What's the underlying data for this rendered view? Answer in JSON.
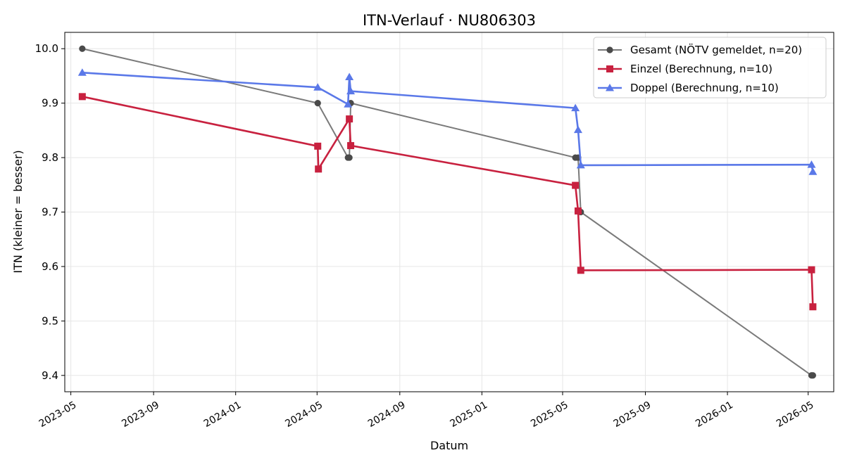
{
  "chart_data": {
    "type": "line",
    "title": "ITN-Verlauf · NU806303",
    "xlabel": "Datum",
    "ylabel": "ITN  (kleiner = besser)",
    "x_type": "date",
    "xlim": [
      "2023-04-22",
      "2026-06-08"
    ],
    "ylim": [
      9.37,
      10.03
    ],
    "x_ticks": [
      "2023-05-01",
      "2023-09-01",
      "2024-01-01",
      "2024-05-01",
      "2024-09-01",
      "2025-01-01",
      "2025-05-01",
      "2025-09-01",
      "2026-01-01",
      "2026-05-01"
    ],
    "x_tick_labels": [
      "2023-05",
      "2023-09",
      "2024-01",
      "2024-05",
      "2024-09",
      "2025-01",
      "2025-05",
      "2025-09",
      "2026-01",
      "2026-05"
    ],
    "y_ticks": [
      9.4,
      9.5,
      9.6,
      9.7,
      9.8,
      9.9,
      10.0
    ],
    "y_tick_labels": [
      "9.4",
      "9.5",
      "9.6",
      "9.7",
      "9.8",
      "9.9",
      "10.0"
    ],
    "grid": true,
    "legend_position": "top-right",
    "series": [
      {
        "name": "Gesamt (NÖTV gemeldet, n=20)",
        "color": "#7a7a7a",
        "marker": "circle",
        "marker_color": "#4a4a4a",
        "points": [
          {
            "x": "2023-05-18",
            "y": 10.0
          },
          {
            "x": "2024-05-02",
            "y": 9.9
          },
          {
            "x": "2024-06-16",
            "y": 9.8
          },
          {
            "x": "2024-06-18",
            "y": 9.8
          },
          {
            "x": "2024-06-20",
            "y": 9.9
          },
          {
            "x": "2025-05-20",
            "y": 9.8
          },
          {
            "x": "2025-05-24",
            "y": 9.8
          },
          {
            "x": "2025-05-28",
            "y": 9.7
          },
          {
            "x": "2026-05-06",
            "y": 9.4
          },
          {
            "x": "2026-05-08",
            "y": 9.4
          }
        ]
      },
      {
        "name": "Einzel (Berechnung, n=10)",
        "color": "#c8213f",
        "marker": "square",
        "points": [
          {
            "x": "2023-05-18",
            "y": 9.912
          },
          {
            "x": "2024-05-02",
            "y": 9.821
          },
          {
            "x": "2024-05-03",
            "y": 9.779
          },
          {
            "x": "2024-06-18",
            "y": 9.871
          },
          {
            "x": "2024-06-20",
            "y": 9.822
          },
          {
            "x": "2025-05-20",
            "y": 9.749
          },
          {
            "x": "2025-05-24",
            "y": 9.702
          },
          {
            "x": "2025-05-28",
            "y": 9.593
          },
          {
            "x": "2026-05-06",
            "y": 9.594
          },
          {
            "x": "2026-05-08",
            "y": 9.526
          }
        ]
      },
      {
        "name": "Doppel (Berechnung, n=10)",
        "color": "#5a78e8",
        "marker": "triangle",
        "points": [
          {
            "x": "2023-05-18",
            "y": 9.956
          },
          {
            "x": "2024-05-02",
            "y": 9.929
          },
          {
            "x": "2024-06-16",
            "y": 9.898
          },
          {
            "x": "2024-06-18",
            "y": 9.948
          },
          {
            "x": "2024-06-20",
            "y": 9.922
          },
          {
            "x": "2025-05-20",
            "y": 9.891
          },
          {
            "x": "2025-05-24",
            "y": 9.851
          },
          {
            "x": "2025-05-28",
            "y": 9.786
          },
          {
            "x": "2026-05-06",
            "y": 9.787
          },
          {
            "x": "2026-05-08",
            "y": 9.774
          }
        ]
      }
    ]
  }
}
